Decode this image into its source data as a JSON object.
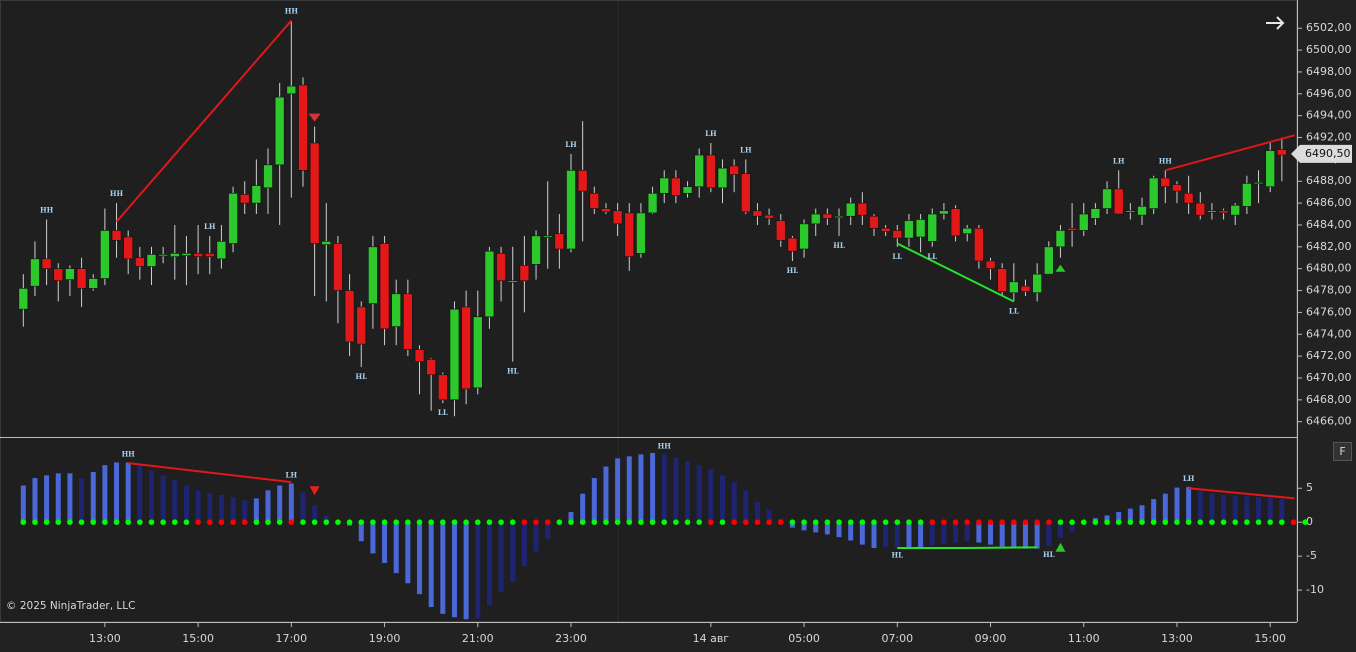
{
  "chart_data": [
    {
      "type": "candlestick",
      "xlim": [
        -2,
        109.3
      ],
      "xticks": [
        {
          "value": 7,
          "label": "13:00"
        },
        {
          "value": 15,
          "label": "15:00"
        },
        {
          "value": 23,
          "label": "17:00"
        },
        {
          "value": 31,
          "label": "19:00"
        },
        {
          "value": 39,
          "label": "21:00"
        },
        {
          "value": 47,
          "label": "23:00"
        },
        {
          "value": 59,
          "label": "14 авг"
        },
        {
          "value": 67,
          "label": "05:00"
        },
        {
          "value": 75,
          "label": "07:00"
        },
        {
          "value": 83,
          "label": "09:00"
        },
        {
          "value": 91,
          "label": "11:00"
        },
        {
          "value": 99,
          "label": "13:00"
        },
        {
          "value": 107,
          "label": "15:00"
        }
      ],
      "ylim": [
        6464.6,
        6504.4
      ],
      "yticks": [
        {
          "value": 6466,
          "label": "6466,00"
        },
        {
          "value": 6468,
          "label": "6468,00"
        },
        {
          "value": 6470,
          "label": "6470,00"
        },
        {
          "value": 6472,
          "label": "6472,00"
        },
        {
          "value": 6474,
          "label": "6474,00"
        },
        {
          "value": 6476,
          "label": "6476,00"
        },
        {
          "value": 6478,
          "label": "6478,00"
        },
        {
          "value": 6480,
          "label": "6480,00"
        },
        {
          "value": 6482,
          "label": "6482,00"
        },
        {
          "value": 6484,
          "label": "6484,00"
        },
        {
          "value": 6486,
          "label": "6486,00"
        },
        {
          "value": 6488,
          "label": "6488,00"
        },
        {
          "value": 6490,
          "label": "6490,00"
        },
        {
          "value": 6492,
          "label": "6492,00"
        },
        {
          "value": 6494,
          "label": "6494,00"
        },
        {
          "value": 6496,
          "label": "6496,00"
        },
        {
          "value": 6498,
          "label": "6498,00"
        },
        {
          "value": 6500,
          "label": "6500,00"
        },
        {
          "value": 6502,
          "label": "6502,00"
        }
      ],
      "up_color": "#2cc82c",
      "down_color": "#e41818",
      "wick_color": "#cfcfcf",
      "open": [
        6476.3,
        6478.4,
        6480.9,
        6480,
        6479,
        6480,
        6478.2,
        6479.1,
        6483.5,
        6482.9,
        6481,
        6480.2,
        6481.2,
        6481.1,
        6481.2,
        6481.4,
        6481.4,
        6480.9,
        6482.3,
        6486.8,
        6486,
        6487.4,
        6489.5,
        6496,
        6496.8,
        6491.5,
        6482.2,
        6482.3,
        6478,
        6476.5,
        6476.8,
        6482.3,
        6474.7,
        6477.7,
        6472.6,
        6471.7,
        6470.3,
        6468,
        6476.5,
        6469.1,
        6475.6,
        6481.4,
        6478.9,
        6480.3,
        6480.4,
        6483,
        6483.2,
        6481.8,
        6489,
        6486.9,
        6485.5,
        6485.3,
        6485.1,
        6481.4,
        6485.1,
        6486.9,
        6488.3,
        6486.9,
        6487.5,
        6490.4,
        6487.4,
        6489.4,
        6488.7,
        6485.3,
        6484.9,
        6484.4,
        6482.8,
        6481.8,
        6484.1,
        6485,
        6484.7,
        6484.8,
        6486,
        6484.8,
        6483.7,
        6483.5,
        6482.8,
        6482.9,
        6482.5,
        6485,
        6485.5,
        6483.2,
        6483.7,
        6480.7,
        6480,
        6477.8,
        6478.4,
        6477.8,
        6479.5,
        6482,
        6483.7,
        6483.5,
        6484.6,
        6485.5,
        6487.3,
        6485.3,
        6484.9,
        6485.5,
        6488.3,
        6487.7,
        6486.9,
        6486,
        6485.3,
        6485.3,
        6484.9,
        6485.7,
        6487.9,
        6487.5,
        6490.9
      ],
      "high": [
        6479.5,
        6482.5,
        6484.5,
        6480.5,
        6480.3,
        6481,
        6479.5,
        6485.5,
        6486,
        6483.5,
        6482,
        6482,
        6482,
        6484,
        6483,
        6484,
        6483,
        6484,
        6487.5,
        6488,
        6490,
        6491,
        6497,
        6502.7,
        6497.5,
        6493,
        6486,
        6483,
        6479.5,
        6477,
        6483,
        6483,
        6479,
        6479,
        6473,
        6471.8,
        6470.5,
        6477,
        6478,
        6478,
        6482,
        6482,
        6482,
        6483,
        6483.5,
        6488,
        6485,
        6490.5,
        6493.5,
        6487.5,
        6486,
        6486,
        6486,
        6486,
        6487.5,
        6489,
        6489,
        6488,
        6491,
        6491.5,
        6490,
        6490,
        6490,
        6486,
        6485.5,
        6485,
        6483,
        6484.5,
        6485.5,
        6485.5,
        6485.5,
        6486.5,
        6487,
        6485,
        6484,
        6484,
        6485,
        6485,
        6485.5,
        6486,
        6485.8,
        6484,
        6484,
        6481,
        6480.5,
        6480.5,
        6479,
        6480.5,
        6482.5,
        6484,
        6486,
        6486,
        6486,
        6488,
        6489,
        6486,
        6486.5,
        6488.5,
        6489,
        6488,
        6488.5,
        6487,
        6486,
        6485.5,
        6486,
        6488.5,
        6489,
        6491.5,
        6492
      ],
      "low": [
        6474.7,
        6477.5,
        6478.5,
        6477,
        6477.5,
        6476.5,
        6478,
        6478.5,
        6481,
        6479.5,
        6479,
        6478.5,
        6480.5,
        6479,
        6478.5,
        6479.5,
        6479.5,
        6480,
        6481.5,
        6485,
        6485,
        6485,
        6484,
        6486.5,
        6487.5,
        6477.5,
        6477,
        6475,
        6472,
        6471,
        6474.5,
        6473,
        6473,
        6472,
        6468.5,
        6467,
        6467.7,
        6466.5,
        6467.6,
        6468.5,
        6474.5,
        6477,
        6471.5,
        6476,
        6479,
        6480,
        6480,
        6481.5,
        6482.5,
        6485,
        6485,
        6483,
        6479.8,
        6481,
        6485,
        6486,
        6486,
        6486.5,
        6486.5,
        6487,
        6486,
        6487,
        6485,
        6484,
        6484,
        6482,
        6480.7,
        6481,
        6483,
        6484,
        6483,
        6484,
        6484,
        6483,
        6483,
        6482,
        6482,
        6481.5,
        6482,
        6484.5,
        6482.5,
        6482.5,
        6480,
        6479,
        6477.5,
        6477,
        6477.5,
        6477,
        6479.5,
        6481,
        6482,
        6483,
        6484,
        6485,
        6485,
        6484.5,
        6484,
        6485,
        6486,
        6486,
        6485,
        6484.5,
        6484.5,
        6484.5,
        6484,
        6485,
        6486,
        6487,
        6488
      ],
      "close": [
        6478.2,
        6480.9,
        6480,
        6478.9,
        6480,
        6478.2,
        6479.1,
        6483.5,
        6482.6,
        6480.9,
        6480.2,
        6481.3,
        6481.3,
        6481.4,
        6481.4,
        6481.1,
        6481.1,
        6482.5,
        6486.9,
        6486,
        6487.6,
        6489.5,
        6495.7,
        6496.7,
        6489,
        6482.3,
        6482.5,
        6478,
        6473.3,
        6473.1,
        6482,
        6474.5,
        6477.7,
        6472.6,
        6471.5,
        6470.3,
        6468,
        6476.3,
        6469,
        6475.6,
        6481.6,
        6478.9,
        6478.9,
        6478.9,
        6483,
        6483,
        6481.8,
        6489,
        6487.1,
        6485.5,
        6485.2,
        6484.1,
        6481.1,
        6485.1,
        6486.9,
        6488.3,
        6486.7,
        6487.5,
        6490.4,
        6487.4,
        6489.2,
        6488.6,
        6485.2,
        6484.8,
        6484.6,
        6482.6,
        6481.6,
        6484.1,
        6485,
        6484.6,
        6484.8,
        6486,
        6484.9,
        6483.7,
        6483.4,
        6482.8,
        6484.4,
        6484.5,
        6485,
        6485.3,
        6483,
        6483.7,
        6480.7,
        6480,
        6477.9,
        6478.8,
        6477.9,
        6479.5,
        6482,
        6483.5,
        6483.5,
        6485,
        6485.5,
        6487.3,
        6485,
        6485.3,
        6485.7,
        6488.3,
        6487.5,
        6487.1,
        6486,
        6484.9,
        6485.3,
        6485.1,
        6485.8,
        6487.8,
        6487.9,
        6490.8,
        6490.4
      ],
      "last_price": {
        "value": 6490.5,
        "label": "6490,50"
      },
      "swing_labels": [
        {
          "index": 2,
          "text": "HH"
        },
        {
          "index": 8,
          "text": "HH"
        },
        {
          "index": 16,
          "text": "LH"
        },
        {
          "index": 23,
          "text": "HH"
        },
        {
          "index": 29,
          "text": "HL"
        },
        {
          "index": 36,
          "text": "LL"
        },
        {
          "index": 42,
          "text": "HL"
        },
        {
          "index": 47,
          "text": "LH"
        },
        {
          "index": 59,
          "text": "LH"
        },
        {
          "index": 62,
          "text": "LH"
        },
        {
          "index": 66,
          "text": "HL"
        },
        {
          "index": 70,
          "text": "HL"
        },
        {
          "index": 75,
          "text": "LL"
        },
        {
          "index": 78,
          "text": "LL"
        },
        {
          "index": 85,
          "text": "LL"
        },
        {
          "index": 94,
          "text": "LH"
        },
        {
          "index": 98,
          "text": "HH"
        }
      ],
      "lines": [
        {
          "color": "#e01818",
          "points": [
            [
              8,
              6484.3
            ],
            [
              23,
              6502.7
            ]
          ]
        },
        {
          "color": "#e01818",
          "points": [
            [
              98,
              6489
            ],
            [
              109.1,
              6492.2
            ]
          ]
        },
        {
          "color": "#28e028",
          "points": [
            [
              75,
              6482.3
            ],
            [
              85,
              6477
            ]
          ]
        }
      ],
      "markers": [
        {
          "index": 25,
          "direction": "down",
          "color": "#e03030"
        },
        {
          "index": 89,
          "direction": "up",
          "color": "#2cc82c"
        }
      ]
    },
    {
      "type": "histogram",
      "ylim": [
        -14.7,
        12.4
      ],
      "yticks": [
        5,
        0,
        -5,
        -10
      ],
      "up_color": "#4a68d8",
      "down_color": "#1e2472",
      "values": [
        5.4,
        6.5,
        6.9,
        7.2,
        7.2,
        6.5,
        7.4,
        8.4,
        8.8,
        8.8,
        8.4,
        7.6,
        6.9,
        6.2,
        5.4,
        4.7,
        4.3,
        4,
        3.7,
        3.2,
        3.5,
        4.7,
        5.4,
        5.7,
        4.4,
        2.5,
        1,
        0.3,
        -0.5,
        -2.8,
        -4.6,
        -6,
        -7.5,
        -9,
        -10.6,
        -12.5,
        -13.5,
        -14,
        -14.3,
        -14.2,
        -12.3,
        -10.3,
        -8.8,
        -6.5,
        -4.3,
        -2.5,
        -0.5,
        1.5,
        4.2,
        6.5,
        8.2,
        9.4,
        9.7,
        10,
        10.2,
        10,
        9.5,
        9,
        8.4,
        7.8,
        6.9,
        5.9,
        4.7,
        3,
        1.8,
        0.5,
        -0.8,
        -1.2,
        -1.5,
        -1.8,
        -2.2,
        -2.7,
        -3.3,
        -3.8,
        -3.7,
        -3.6,
        -3.8,
        -3.8,
        -3.4,
        -3.2,
        -3,
        -2.8,
        -3,
        -3.3,
        -3.6,
        -3.8,
        -3.9,
        -3.9,
        -3.5,
        -2.3,
        -1.4,
        -0.4,
        0.6,
        1,
        1.5,
        2,
        2.5,
        3.4,
        4.2,
        5.1,
        5.2,
        4.6,
        4.3,
        4,
        3.9,
        3.8,
        3.7,
        3.6,
        3.4
      ],
      "dot_colors": [
        "lime",
        "lime",
        "lime",
        "lime",
        "lime",
        "lime",
        "lime",
        "lime",
        "lime",
        "lime",
        "lime",
        "lime",
        "lime",
        "lime",
        "lime",
        "red",
        "red",
        "red",
        "red",
        "red",
        "lime",
        "lime",
        "lime",
        "red",
        "lime",
        "lime",
        "lime",
        "lime",
        "lime",
        "lime",
        "lime",
        "lime",
        "lime",
        "lime",
        "lime",
        "lime",
        "lime",
        "lime",
        "lime",
        "lime",
        "lime",
        "lime",
        "lime",
        "red",
        "red",
        "red",
        "lime",
        "lime",
        "lime",
        "lime",
        "lime",
        "lime",
        "lime",
        "lime",
        "lime",
        "lime",
        "lime",
        "lime",
        "lime",
        "red",
        "lime",
        "red",
        "red",
        "red",
        "red",
        "red",
        "lime",
        "lime",
        "lime",
        "lime",
        "lime",
        "lime",
        "lime",
        "lime",
        "lime",
        "lime",
        "lime",
        "lime",
        "red",
        "red",
        "red",
        "red",
        "red",
        "red",
        "red",
        "red",
        "red",
        "red",
        "red",
        "lime",
        "lime",
        "lime",
        "lime",
        "lime",
        "lime",
        "lime",
        "lime",
        "lime",
        "lime",
        "lime",
        "lime",
        "lime",
        "lime",
        "lime",
        "lime",
        "lime",
        "lime",
        "lime",
        "lime",
        "red",
        "lime"
      ],
      "swing_labels": [
        {
          "index": 9,
          "text": "HH"
        },
        {
          "index": 23,
          "text": "LH"
        },
        {
          "index": 55,
          "text": "HH"
        },
        {
          "index": 75,
          "text": "HL"
        },
        {
          "index": 88,
          "text": "HL"
        },
        {
          "index": 100,
          "text": "LH"
        }
      ],
      "lines": [
        {
          "color": "#e01818",
          "points": [
            [
              9,
              8.7
            ],
            [
              23,
              5.9
            ]
          ]
        },
        {
          "color": "#28e028",
          "points": [
            [
              75,
              -3.8
            ],
            [
              81,
              -3.8
            ],
            [
              87,
              -3.7
            ]
          ]
        },
        {
          "color": "#e01818",
          "points": [
            [
              100,
              5
            ],
            [
              109.1,
              3.5
            ]
          ]
        }
      ],
      "markers": [
        {
          "index": 25,
          "direction": "down",
          "color": "#e82020"
        },
        {
          "index": 89,
          "direction": "up",
          "color": "#2cc82c"
        }
      ]
    }
  ],
  "copyright": "© 2025 NinjaTrader, LLC",
  "button": "F"
}
